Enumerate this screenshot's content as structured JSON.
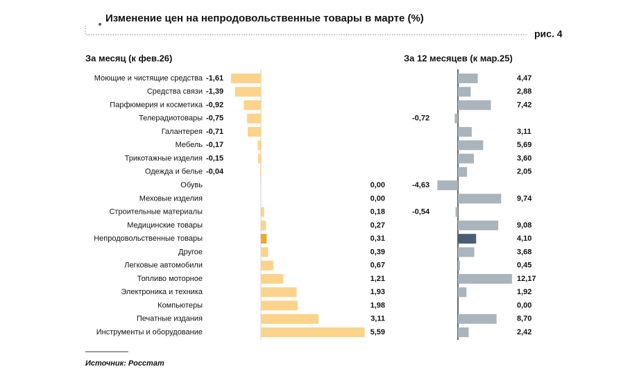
{
  "header": {
    "title": "Изменение цен на непродовольственные товары в марте (%)",
    "figure_label": "рис. 4"
  },
  "source": "Источник: Росстат",
  "chart_data": [
    {
      "type": "bar",
      "orientation": "horizontal",
      "subtitle": "За месяц (к фев.26)",
      "categories": [
        "Моющие и чистящие средства",
        "Средства связи",
        "Парфюмерия и косметика",
        "Телерадиотовары",
        "Галантерея",
        "Мебель",
        "Трикотажные изделия",
        "Одежда и белье",
        "Обувь",
        "Меховые изделия",
        "Строительные материалы",
        "Медицинские товары",
        "Непродовольственные товары",
        "Другое",
        "Легковые автомобили",
        "Топливо моторное",
        "Электроника и техника",
        "Компьютеры",
        "Печатные издания",
        "Инструменты и оборудование"
      ],
      "values": [
        -1.61,
        -1.39,
        -0.92,
        -0.75,
        -0.71,
        -0.17,
        -0.15,
        -0.04,
        0.0,
        0.0,
        0.18,
        0.27,
        0.31,
        0.39,
        0.67,
        1.21,
        1.93,
        1.98,
        3.11,
        5.59
      ],
      "value_labels": [
        "-1,61",
        "-1,39",
        "-0,92",
        "-0,75",
        "-0,71",
        "-0,17",
        "-0,15",
        "-0,04",
        "0,00",
        "0,00",
        "0,18",
        "0,27",
        "0,31",
        "0,39",
        "0,67",
        "1,21",
        "1,93",
        "1,98",
        "3,11",
        "5,59"
      ],
      "colors": [
        "#fcd38b",
        "#fcd38b",
        "#fcd38b",
        "#fcd38b",
        "#fcd38b",
        "#fcd38b",
        "#fcd38b",
        "#fcd38b",
        "#fcd38b",
        "#fcd38b",
        "#fcd38b",
        "#fcd38b",
        "#f5a623",
        "#fcd38b",
        "#fcd38b",
        "#fcd38b",
        "#fcd38b",
        "#fcd38b",
        "#fcd38b",
        "#fcd38b"
      ],
      "xlim": [
        -2,
        6
      ]
    },
    {
      "type": "bar",
      "orientation": "horizontal",
      "subtitle": "За 12 месяцев (к мар.25)",
      "values": [
        4.47,
        2.88,
        7.42,
        -0.72,
        3.11,
        5.69,
        3.6,
        2.05,
        -4.63,
        9.74,
        -0.54,
        9.08,
        4.1,
        3.68,
        0.45,
        12.17,
        1.92,
        0.0,
        8.7,
        2.42
      ],
      "value_labels": [
        "4,47",
        "2,88",
        "7,42",
        "-0,72",
        "3,11",
        "5,69",
        "3,60",
        "2,05",
        "-4,63",
        "9,74",
        "-0,54",
        "9,08",
        "4,10",
        "3,68",
        "0,45",
        "12,17",
        "1,92",
        "0,00",
        "8,70",
        "2,42"
      ],
      "colors": [
        "#a9b4bd",
        "#a9b4bd",
        "#a9b4bd",
        "#a9b4bd",
        "#a9b4bd",
        "#a9b4bd",
        "#a9b4bd",
        "#a9b4bd",
        "#a9b4bd",
        "#a9b4bd",
        "#a9b4bd",
        "#a9b4bd",
        "#4b5d72",
        "#a9b4bd",
        "#a9b4bd",
        "#a9b4bd",
        "#a9b4bd",
        "#a9b4bd",
        "#a9b4bd",
        "#a9b4bd"
      ],
      "xlim": [
        -6,
        14
      ]
    }
  ]
}
